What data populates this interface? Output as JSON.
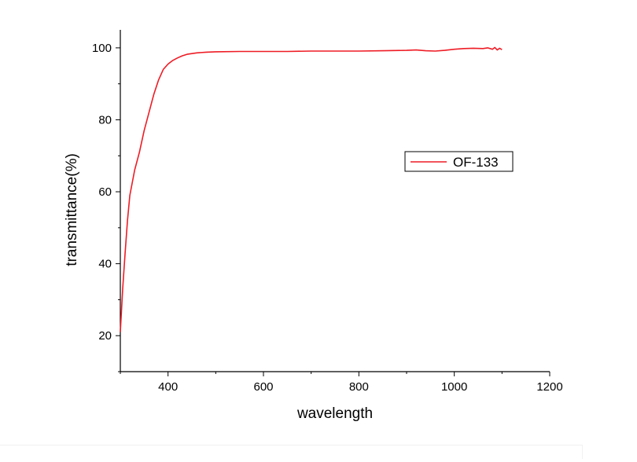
{
  "chart_data": {
    "type": "line",
    "title": "",
    "xlabel": "wavelength",
    "ylabel": "transmittance(%)",
    "xlim": [
      300,
      1200
    ],
    "ylim": [
      10,
      105
    ],
    "xticks": [
      400,
      600,
      800,
      1000,
      1200
    ],
    "yticks": [
      20,
      40,
      60,
      80,
      100
    ],
    "grid": false,
    "legend": {
      "position": "right-center"
    },
    "series": [
      {
        "name": "OF-133",
        "color": "#ee1c25",
        "x": [
          300,
          305,
          310,
          315,
          320,
          330,
          340,
          350,
          360,
          370,
          380,
          390,
          400,
          410,
          420,
          430,
          440,
          450,
          460,
          480,
          500,
          550,
          600,
          650,
          700,
          750,
          800,
          850,
          900,
          920,
          940,
          960,
          980,
          1000,
          1020,
          1040,
          1060,
          1070,
          1080,
          1085,
          1090,
          1095,
          1100
        ],
        "y": [
          21,
          33,
          43,
          52,
          59,
          66,
          71,
          77,
          82,
          87,
          91,
          94,
          95.5,
          96.5,
          97.2,
          97.8,
          98.2,
          98.4,
          98.6,
          98.8,
          98.9,
          99,
          99,
          99,
          99.1,
          99.1,
          99.1,
          99.2,
          99.3,
          99.4,
          99.2,
          99.1,
          99.3,
          99.6,
          99.8,
          99.9,
          99.8,
          100,
          99.6,
          100.1,
          99.4,
          99.9,
          99.5
        ]
      }
    ]
  }
}
